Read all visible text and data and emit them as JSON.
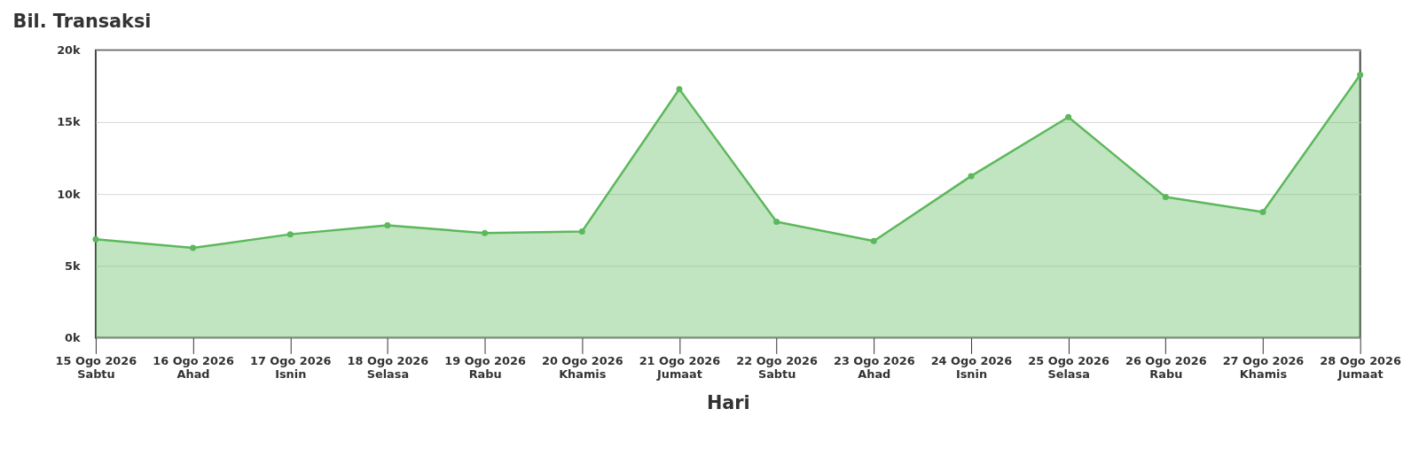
{
  "chart_data": {
    "type": "area",
    "title": "Bil. Transaksi",
    "xlabel": "Hari",
    "categories": [
      "15 Ogo 2026\nSabtu",
      "16 Ogo 2026\nAhad",
      "17 Ogo 2026\nIsnin",
      "18 Ogo 2026\nSelasa",
      "19 Ogo 2026\nRabu",
      "20 Ogo 2026\nKhamis",
      "21 Ogo 2026\nJumaat",
      "22 Ogo 2026\nSabtu",
      "23 Ogo 2026\nAhad",
      "24 Ogo 2026\nIsnin",
      "25 Ogo 2026\nSelasa",
      "26 Ogo 2026\nRabu",
      "27 Ogo 2026\nKhamis",
      "28 Ogo 2026\nJumaat"
    ],
    "series": [
      {
        "color": "#5cb85c",
        "values": [
          6850,
          6250,
          7200,
          7830,
          7280,
          7400,
          17300,
          8070,
          6730,
          11250,
          15350,
          9790,
          8750,
          18290
        ]
      }
    ],
    "ylim": [
      0,
      20000
    ],
    "yticks": [
      {
        "value": 0,
        "label": "0k"
      },
      {
        "value": 5000,
        "label": "5k"
      },
      {
        "value": 10000,
        "label": "10k"
      },
      {
        "value": 15000,
        "label": "15k"
      },
      {
        "value": 20000,
        "label": "20k"
      }
    ],
    "grid": "y",
    "marker": "circle"
  }
}
